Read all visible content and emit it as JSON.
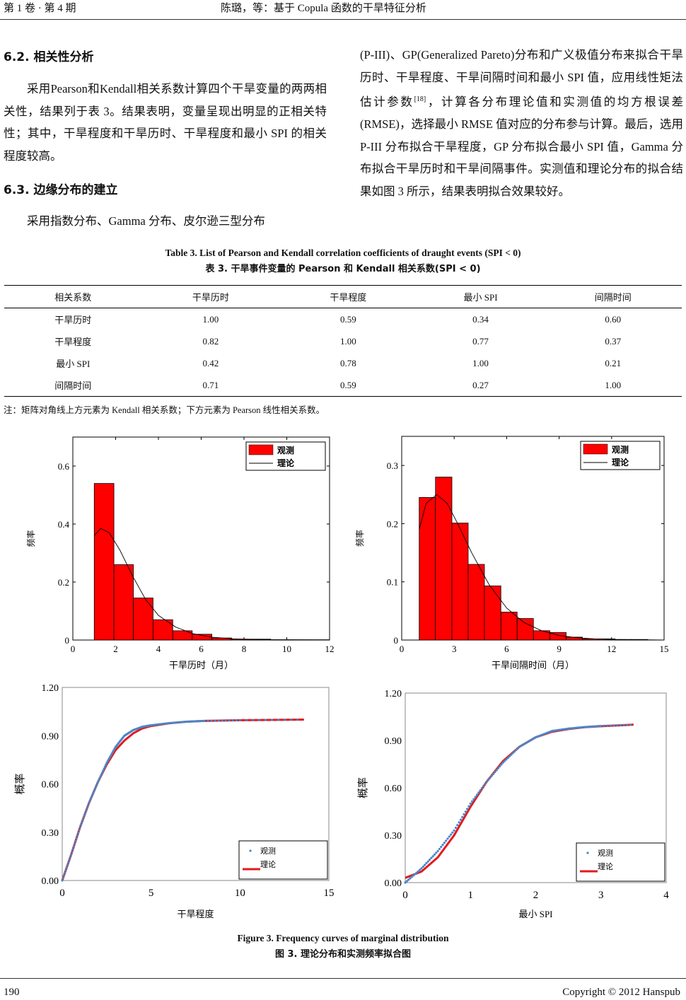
{
  "header": {
    "left": "第 1 卷 · 第 4 期",
    "center": "陈璐，等：基于 Copula 函数的干旱特征分析"
  },
  "left_col": {
    "s62_title": "6.2.  相关性分析",
    "s62_text": "采用Pearson和Kendall相关系数计算四个干旱变量的两两相关性，结果列于表 3。结果表明，变量呈现出明显的正相关特性；其中，干旱程度和干旱历时、干旱程度和最小 SPI 的相关程度较高。",
    "s63_title": "6.3.  边缘分布的建立",
    "s63_text": "采用指数分布、Gamma  分布、皮尔逊三型分布"
  },
  "right_col": {
    "text_a": "(P-III)、GP(Generalized Pareto)分布和广义极值分布来拟合干旱历时、干旱程度、干旱间隔时间和最小  SPI 值，应用线性矩法估计参数",
    "ref": "[18]",
    "text_b": "，计算各分布理论值和实测值的均方根误差(RMSE)，选择最小  RMSE  值对应的分布参与计算。最后，选用 P-III 分布拟合干旱程度，GP 分布拟合最小 SPI 值，Gamma 分布拟合干旱历时和干旱间隔事件。实测值和理论分布的拟合结果如图 3 所示，结果表明拟合效果较好。"
  },
  "table": {
    "caption_en": "Table 3. List of Pearson and Kendall correlation coefficients of draught events (SPI < 0)",
    "caption_cn": "表 3.  干旱事件变量的 Pearson 和 Kendall 相关系数(SPI < 0)",
    "headers": [
      "相关系数",
      "干旱历时",
      "干旱程度",
      "最小 SPI",
      "间隔时间"
    ],
    "rows": [
      [
        "干旱历时",
        "1.00",
        "0.59",
        "0.34",
        "0.60"
      ],
      [
        "干旱程度",
        "0.82",
        "1.00",
        "0.77",
        "0.37"
      ],
      [
        "最小 SPI",
        "0.42",
        "0.78",
        "1.00",
        "0.21"
      ],
      [
        "间隔时间",
        "0.71",
        "0.59",
        "0.27",
        "1.00"
      ]
    ],
    "note": "注：矩阵对角线上方元素为 Kendall 相关系数；下方元素为 Pearson 线性相关系数。"
  },
  "figure": {
    "caption_en": "Figure 3. Frequency curves of marginal distribution",
    "caption_cn": "图 3.  理论分布和实测频率拟合图"
  },
  "footer": {
    "page": "190",
    "copyright": "Copyright © 2012 Hanspub"
  },
  "colors": {
    "bar": "#ff0000",
    "observed": "#4a86c8",
    "theory_line": "#e31a1c"
  },
  "chart_data": [
    {
      "type": "bar",
      "xlabel": "干旱历时（月）",
      "ylabel": "频率",
      "xlim": [
        0,
        12
      ],
      "ylim": [
        0,
        0.7
      ],
      "xticks": [
        "0",
        "2",
        "4",
        "6",
        "8",
        "10",
        "12"
      ],
      "yticks": [
        "0",
        "0.2",
        "0.4",
        "0.6"
      ],
      "bin_edges": [
        1,
        1.92,
        2.83,
        3.75,
        4.67,
        5.58,
        6.5,
        7.42,
        8.33,
        9.25,
        10.17,
        11.08,
        12
      ],
      "values": [
        0.54,
        0.26,
        0.145,
        0.07,
        0.032,
        0.02,
        0.007,
        0.003,
        0.003,
        0.001,
        0.001,
        0.001
      ],
      "curve": {
        "x": [
          1,
          1.3,
          1.7,
          2.2,
          2.8,
          3.4,
          4,
          4.8,
          5.6,
          6.5,
          7.5,
          9,
          12
        ],
        "y": [
          0.36,
          0.385,
          0.37,
          0.31,
          0.22,
          0.14,
          0.085,
          0.045,
          0.022,
          0.01,
          0.004,
          0.001,
          0
        ]
      },
      "legend": [
        "观测",
        "理论"
      ],
      "legend_position": "top-right"
    },
    {
      "type": "bar",
      "xlabel": "干旱间隔时间（月）",
      "ylabel": "频率",
      "xlim": [
        0,
        15
      ],
      "ylim": [
        0,
        0.35
      ],
      "xticks": [
        "0",
        "3",
        "6",
        "9",
        "12",
        "15"
      ],
      "yticks": [
        "0",
        "0.1",
        "0.2",
        "0.3"
      ],
      "bin_edges": [
        1,
        1.93,
        2.87,
        3.8,
        4.73,
        5.67,
        6.6,
        7.53,
        8.47,
        9.4,
        10.33,
        11.27,
        12.2,
        13.13,
        14.07,
        15
      ],
      "values": [
        0.245,
        0.28,
        0.201,
        0.13,
        0.093,
        0.048,
        0.037,
        0.016,
        0.013,
        0.005,
        0.002,
        0.002,
        0.001,
        0.001,
        0
      ],
      "curve": {
        "x": [
          1,
          1.4,
          2,
          2.6,
          3.2,
          4,
          5,
          6,
          7,
          8,
          9,
          10,
          11,
          12,
          15
        ],
        "y": [
          0.19,
          0.235,
          0.25,
          0.235,
          0.2,
          0.15,
          0.095,
          0.055,
          0.03,
          0.016,
          0.008,
          0.004,
          0.002,
          0.001,
          0
        ]
      },
      "legend": [
        "观测",
        "理论"
      ],
      "legend_position": "top-right"
    },
    {
      "type": "scatter",
      "xlabel": "干旱程度",
      "ylabel": "概率",
      "xlim": [
        0,
        15
      ],
      "ylim": [
        0,
        1.2
      ],
      "xticks": [
        "0",
        "5",
        "10",
        "15"
      ],
      "yticks": [
        "0.00",
        "0.30",
        "0.60",
        "0.90",
        "1.20"
      ],
      "observed": {
        "x": [
          0,
          0.5,
          1,
          1.5,
          2,
          2.5,
          3,
          3.5,
          4,
          4.5,
          5,
          6,
          7,
          8,
          10,
          13.6
        ],
        "y": [
          0,
          0.16,
          0.33,
          0.48,
          0.61,
          0.73,
          0.83,
          0.9,
          0.935,
          0.955,
          0.965,
          0.978,
          0.987,
          0.992,
          0.996,
          1.0
        ]
      },
      "theory": {
        "x": [
          0,
          0.5,
          1,
          1.5,
          2,
          2.5,
          3,
          3.5,
          4,
          4.5,
          5,
          6,
          7,
          8,
          10,
          13.6
        ],
        "y": [
          0,
          0.16,
          0.33,
          0.48,
          0.61,
          0.72,
          0.81,
          0.87,
          0.915,
          0.945,
          0.96,
          0.977,
          0.987,
          0.992,
          0.996,
          1.0
        ]
      },
      "legend": [
        "观测",
        "理论"
      ],
      "legend_position": "bottom-right"
    },
    {
      "type": "scatter",
      "xlabel": "最小 SPI",
      "ylabel": "概率",
      "xlim": [
        0,
        4
      ],
      "ylim": [
        0,
        1.2
      ],
      "xticks": [
        "0",
        "1",
        "2",
        "3",
        "4"
      ],
      "yticks": [
        "0.00",
        "0.30",
        "0.60",
        "0.90",
        "1.20"
      ],
      "observed": {
        "x": [
          0,
          0.25,
          0.5,
          0.75,
          1,
          1.25,
          1.5,
          1.75,
          2,
          2.25,
          2.5,
          2.75,
          3,
          3.5
        ],
        "y": [
          0,
          0.09,
          0.2,
          0.33,
          0.5,
          0.64,
          0.76,
          0.86,
          0.92,
          0.96,
          0.975,
          0.985,
          0.992,
          1.0
        ]
      },
      "theory": {
        "x": [
          0,
          0.25,
          0.5,
          0.75,
          1,
          1.25,
          1.5,
          1.75,
          2,
          2.25,
          2.5,
          2.75,
          3,
          3.5
        ],
        "y": [
          0.03,
          0.07,
          0.16,
          0.3,
          0.48,
          0.64,
          0.77,
          0.86,
          0.92,
          0.955,
          0.972,
          0.984,
          0.99,
          1.0
        ]
      },
      "legend": [
        "观测",
        "理论"
      ],
      "legend_position": "bottom-right"
    }
  ]
}
